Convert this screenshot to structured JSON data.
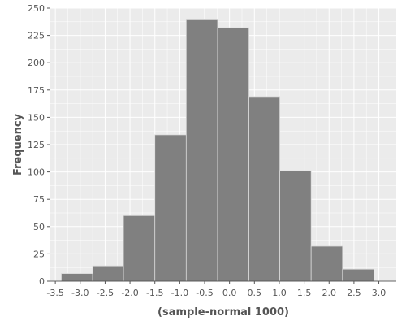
{
  "chart_data": {
    "type": "bar",
    "title": "",
    "xlabel": "(sample-normal 1000)",
    "ylabel": "Frequency",
    "bins": [
      {
        "start": -3.38,
        "end": -2.75,
        "count": 7
      },
      {
        "start": -2.75,
        "end": -2.13,
        "count": 14
      },
      {
        "start": -2.13,
        "end": -1.5,
        "count": 60
      },
      {
        "start": -1.5,
        "end": -0.87,
        "count": 134
      },
      {
        "start": -0.87,
        "end": -0.24,
        "count": 240
      },
      {
        "start": -0.24,
        "end": 0.39,
        "count": 232
      },
      {
        "start": 0.39,
        "end": 1.01,
        "count": 169
      },
      {
        "start": 1.01,
        "end": 1.64,
        "count": 101
      },
      {
        "start": 1.64,
        "end": 2.27,
        "count": 32
      },
      {
        "start": 2.27,
        "end": 2.9,
        "count": 11
      }
    ],
    "xlim": [
      -3.6,
      3.35
    ],
    "ylim": [
      0,
      250
    ],
    "x_ticks": [
      -3.5,
      -3.0,
      -2.5,
      -2.0,
      -1.5,
      -1.0,
      -0.5,
      0.0,
      0.5,
      1.0,
      1.5,
      2.0,
      2.5,
      3.0
    ],
    "x_tick_labels": [
      "-3.5",
      "-3.0",
      "-2.5",
      "-2.0",
      "-1.5",
      "-1.0",
      "-0.5",
      "0.0",
      "0.5",
      "1.0",
      "1.5",
      "2.0",
      "2.5",
      "3.0"
    ],
    "y_ticks": [
      0,
      25,
      50,
      75,
      100,
      125,
      150,
      175,
      200,
      225,
      250
    ],
    "y_tick_labels": [
      "0",
      "25",
      "50",
      "75",
      "100",
      "125",
      "150",
      "175",
      "200",
      "225",
      "250"
    ],
    "grid": true,
    "colors": {
      "panel_bg": "#ebebeb",
      "grid": "#ffffff",
      "bar_fill": "#808080",
      "bar_stroke": "#d9d9d9",
      "tick_text": "#555555",
      "axis_line": "#333333"
    }
  }
}
